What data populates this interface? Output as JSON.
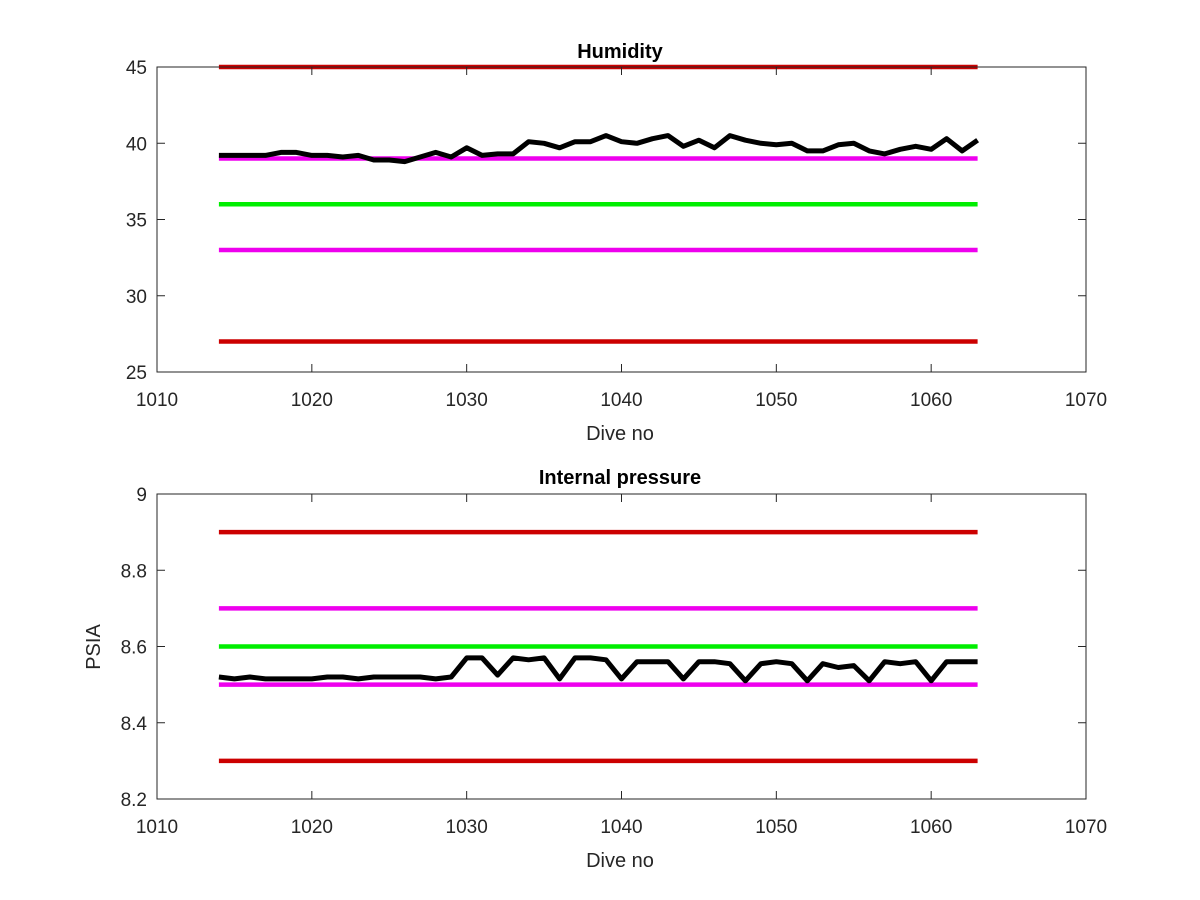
{
  "chart_data": [
    {
      "type": "line",
      "title": "Humidity",
      "xlabel": "Dive no",
      "ylabel": "",
      "xlim": [
        1010,
        1070
      ],
      "ylim": [
        25,
        45
      ],
      "xticks": [
        "1010",
        "1020",
        "1030",
        "1040",
        "1050",
        "1060",
        "1070"
      ],
      "yticks": [
        "25",
        "30",
        "35",
        "40",
        "45"
      ],
      "grid": false,
      "series": [
        {
          "color": "#000000",
          "x": [
            1014,
            1015,
            1016,
            1017,
            1018,
            1019,
            1020,
            1021,
            1022,
            1023,
            1024,
            1025,
            1026,
            1027,
            1028,
            1029,
            1030,
            1031,
            1032,
            1033,
            1034,
            1035,
            1036,
            1037,
            1038,
            1039,
            1040,
            1041,
            1042,
            1043,
            1044,
            1045,
            1046,
            1047,
            1048,
            1049,
            1050,
            1051,
            1052,
            1053,
            1054,
            1055,
            1056,
            1057,
            1058,
            1059,
            1060,
            1061,
            1062,
            1063
          ],
          "values": [
            39.2,
            39.2,
            39.2,
            39.2,
            39.4,
            39.4,
            39.2,
            39.2,
            39.1,
            39.2,
            38.9,
            38.9,
            38.8,
            39.1,
            39.4,
            39.1,
            39.7,
            39.2,
            39.3,
            39.3,
            40.1,
            40.0,
            39.7,
            40.1,
            40.1,
            40.5,
            40.1,
            40.0,
            40.3,
            40.5,
            39.8,
            40.2,
            39.7,
            40.5,
            40.2,
            40.0,
            39.9,
            40.0,
            39.5,
            39.5,
            39.9,
            40.0,
            39.5,
            39.3,
            39.6,
            39.8,
            39.6,
            40.3,
            39.5,
            40.2
          ]
        },
        {
          "color": "#cc0000",
          "x": [
            1014,
            1063
          ],
          "values": [
            45,
            45
          ]
        },
        {
          "color": "#ee00ee",
          "x": [
            1014,
            1063
          ],
          "values": [
            39,
            39
          ]
        },
        {
          "color": "#00ee00",
          "x": [
            1014,
            1063
          ],
          "values": [
            36,
            36
          ]
        },
        {
          "color": "#ee00ee",
          "x": [
            1014,
            1063
          ],
          "values": [
            33,
            33
          ]
        },
        {
          "color": "#cc0000",
          "x": [
            1014,
            1063
          ],
          "values": [
            27,
            27
          ]
        }
      ]
    },
    {
      "type": "line",
      "title": "Internal pressure",
      "xlabel": "Dive no",
      "ylabel": "PSIA",
      "xlim": [
        1010,
        1070
      ],
      "ylim": [
        8.2,
        9
      ],
      "xticks": [
        "1010",
        "1020",
        "1030",
        "1040",
        "1050",
        "1060",
        "1070"
      ],
      "yticks": [
        "8.2",
        "8.4",
        "8.6",
        "8.8",
        "9"
      ],
      "grid": false,
      "series": [
        {
          "color": "#000000",
          "x": [
            1014,
            1015,
            1016,
            1017,
            1018,
            1019,
            1020,
            1021,
            1022,
            1023,
            1024,
            1025,
            1026,
            1027,
            1028,
            1029,
            1030,
            1031,
            1032,
            1033,
            1034,
            1035,
            1036,
            1037,
            1038,
            1039,
            1040,
            1041,
            1042,
            1043,
            1044,
            1045,
            1046,
            1047,
            1048,
            1049,
            1050,
            1051,
            1052,
            1053,
            1054,
            1055,
            1056,
            1057,
            1058,
            1059,
            1060,
            1061,
            1062,
            1063
          ],
          "values": [
            8.52,
            8.515,
            8.52,
            8.515,
            8.515,
            8.515,
            8.515,
            8.52,
            8.52,
            8.515,
            8.52,
            8.52,
            8.52,
            8.52,
            8.515,
            8.52,
            8.57,
            8.57,
            8.525,
            8.57,
            8.565,
            8.57,
            8.515,
            8.57,
            8.57,
            8.565,
            8.515,
            8.56,
            8.56,
            8.56,
            8.515,
            8.56,
            8.56,
            8.555,
            8.51,
            8.555,
            8.56,
            8.555,
            8.51,
            8.555,
            8.545,
            8.55,
            8.51,
            8.56,
            8.555,
            8.56,
            8.51,
            8.56,
            8.56,
            8.56
          ]
        },
        {
          "color": "#cc0000",
          "x": [
            1014,
            1063
          ],
          "values": [
            8.9,
            8.9
          ]
        },
        {
          "color": "#ee00ee",
          "x": [
            1014,
            1063
          ],
          "values": [
            8.7,
            8.7
          ]
        },
        {
          "color": "#00ee00",
          "x": [
            1014,
            1063
          ],
          "values": [
            8.6,
            8.6
          ]
        },
        {
          "color": "#ee00ee",
          "x": [
            1014,
            1063
          ],
          "values": [
            8.5,
            8.5
          ]
        },
        {
          "color": "#cc0000",
          "x": [
            1014,
            1063
          ],
          "values": [
            8.3,
            8.3
          ]
        }
      ]
    }
  ]
}
